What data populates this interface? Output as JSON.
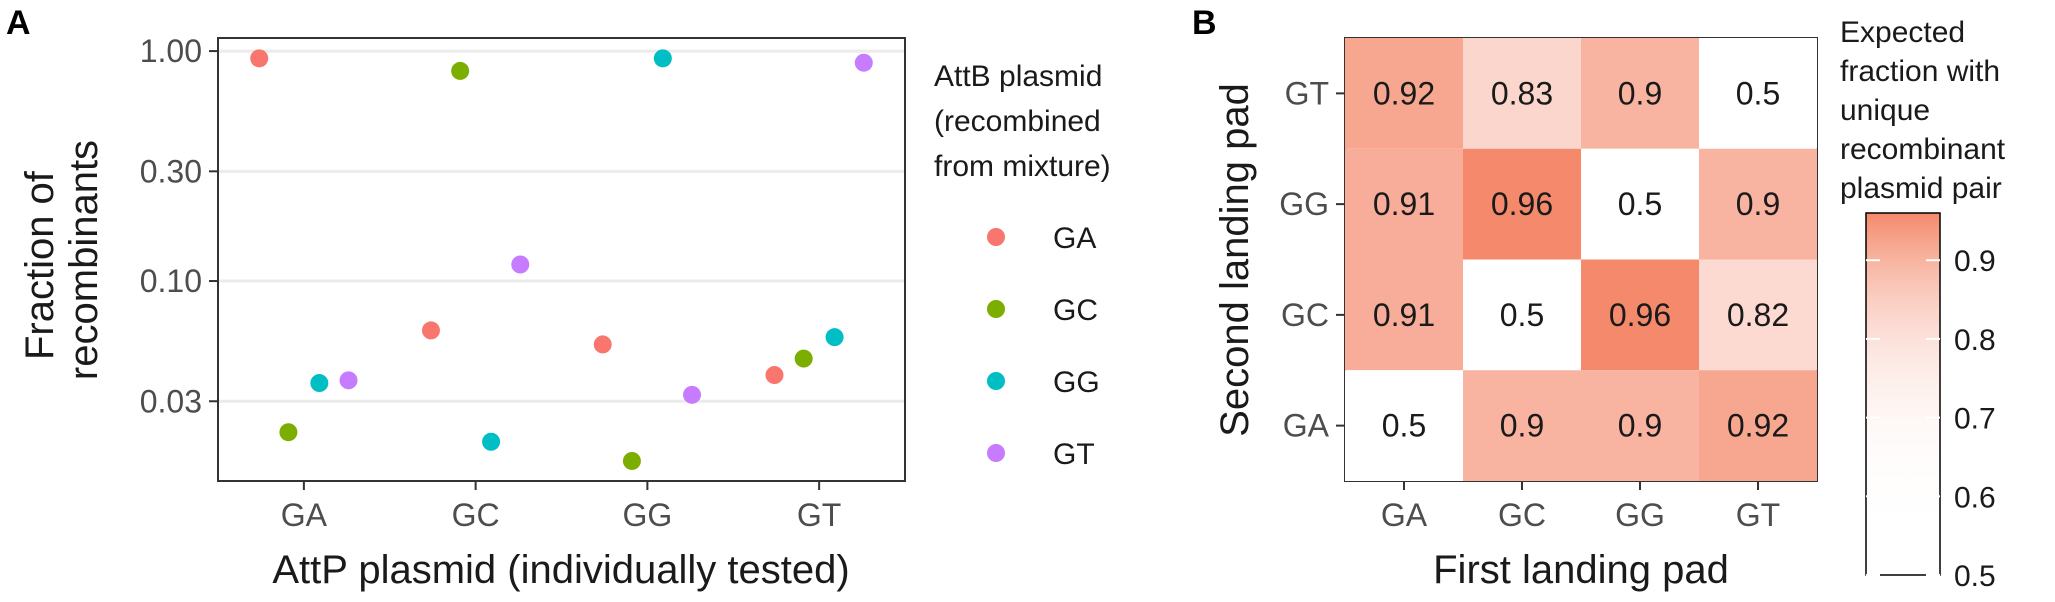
{
  "colors": {
    "GA": "#F8766D",
    "GC": "#7CAE00",
    "GG": "#00BFC4",
    "GT": "#C77CFF",
    "heat_low": "#ffffff",
    "heat_high": "#f4896b",
    "gridline": "#ebebeb",
    "axis_line": "#333333"
  },
  "chart_data": [
    {
      "panel": "A",
      "type": "scatter",
      "xlabel": "AttP plasmid (individually tested)",
      "ylabel": [
        "Fraction of",
        "recombinants"
      ],
      "categories": [
        "GA",
        "GC",
        "GG",
        "GT"
      ],
      "y_scale": "log10",
      "yticks": [
        0.03,
        0.1,
        0.3,
        1.0
      ],
      "ytick_labels": [
        "0.03",
        "0.10",
        "0.30",
        "1.00"
      ],
      "ylim": [
        0.0135,
        1.14
      ],
      "grid": true,
      "legend": {
        "title": [
          "AttB plasmid",
          "(recombined",
          "from mixture)"
        ],
        "position": "right",
        "entries": [
          "GA",
          "GC",
          "GG",
          "GT"
        ]
      },
      "points": [
        {
          "x": "GA",
          "series": "GA",
          "y": 0.93
        },
        {
          "x": "GA",
          "series": "GC",
          "y": 0.022
        },
        {
          "x": "GA",
          "series": "GG",
          "y": 0.036
        },
        {
          "x": "GA",
          "series": "GT",
          "y": 0.037
        },
        {
          "x": "GC",
          "series": "GA",
          "y": 0.061
        },
        {
          "x": "GC",
          "series": "GC",
          "y": 0.82
        },
        {
          "x": "GC",
          "series": "GG",
          "y": 0.02
        },
        {
          "x": "GC",
          "series": "GT",
          "y": 0.118
        },
        {
          "x": "GG",
          "series": "GA",
          "y": 0.053
        },
        {
          "x": "GG",
          "series": "GC",
          "y": 0.0165
        },
        {
          "x": "GG",
          "series": "GG",
          "y": 0.93
        },
        {
          "x": "GG",
          "series": "GT",
          "y": 0.032
        },
        {
          "x": "GT",
          "series": "GA",
          "y": 0.039
        },
        {
          "x": "GT",
          "series": "GC",
          "y": 0.046
        },
        {
          "x": "GT",
          "series": "GG",
          "y": 0.057
        },
        {
          "x": "GT",
          "series": "GT",
          "y": 0.89
        }
      ]
    },
    {
      "panel": "B",
      "type": "heatmap",
      "xlabel": "First landing pad",
      "ylabel": "Second landing pad",
      "x_categories": [
        "GA",
        "GC",
        "GG",
        "GT"
      ],
      "y_categories": [
        "GA",
        "GC",
        "GG",
        "GT"
      ],
      "colorbar": {
        "title": [
          "Expected",
          "fraction with",
          "unique",
          "recombinant",
          "plasmid pair"
        ],
        "ticks": [
          0.5,
          0.6,
          0.7,
          0.8,
          0.9
        ],
        "tick_labels": [
          "0.5",
          "0.6",
          "0.7",
          "0.8",
          "0.9"
        ],
        "range": [
          0.5,
          0.96
        ]
      },
      "cells": [
        {
          "x": "GA",
          "y": "GT",
          "value": 0.92,
          "label": "0.92"
        },
        {
          "x": "GC",
          "y": "GT",
          "value": 0.83,
          "label": "0.83"
        },
        {
          "x": "GG",
          "y": "GT",
          "value": 0.9,
          "label": "0.9"
        },
        {
          "x": "GT",
          "y": "GT",
          "value": 0.5,
          "label": "0.5"
        },
        {
          "x": "GA",
          "y": "GG",
          "value": 0.91,
          "label": "0.91"
        },
        {
          "x": "GC",
          "y": "GG",
          "value": 0.96,
          "label": "0.96"
        },
        {
          "x": "GG",
          "y": "GG",
          "value": 0.5,
          "label": "0.5"
        },
        {
          "x": "GT",
          "y": "GG",
          "value": 0.9,
          "label": "0.9"
        },
        {
          "x": "GA",
          "y": "GC",
          "value": 0.91,
          "label": "0.91"
        },
        {
          "x": "GC",
          "y": "GC",
          "value": 0.5,
          "label": "0.5"
        },
        {
          "x": "GG",
          "y": "GC",
          "value": 0.96,
          "label": "0.96"
        },
        {
          "x": "GT",
          "y": "GC",
          "value": 0.82,
          "label": "0.82"
        },
        {
          "x": "GA",
          "y": "GA",
          "value": 0.5,
          "label": "0.5"
        },
        {
          "x": "GC",
          "y": "GA",
          "value": 0.9,
          "label": "0.9"
        },
        {
          "x": "GG",
          "y": "GA",
          "value": 0.9,
          "label": "0.9"
        },
        {
          "x": "GT",
          "y": "GA",
          "value": 0.92,
          "label": "0.92"
        }
      ]
    }
  ]
}
